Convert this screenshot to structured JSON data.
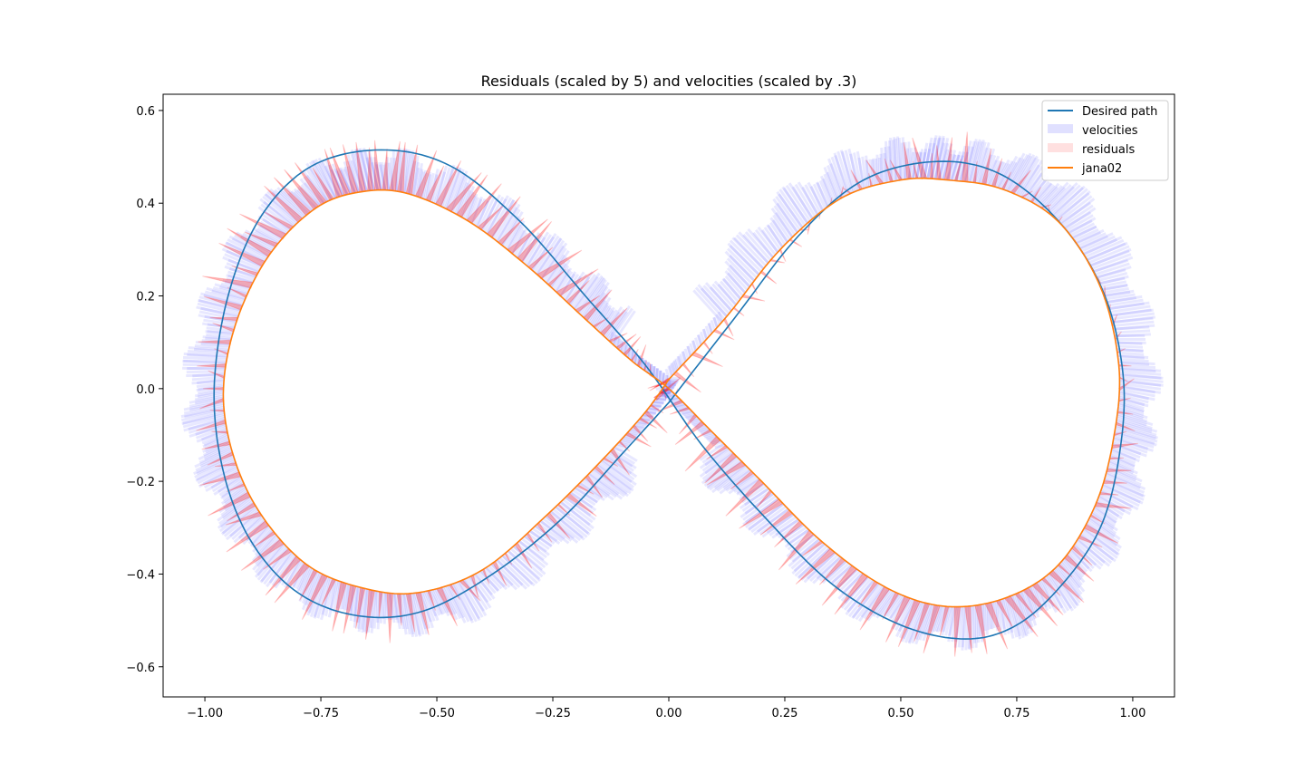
{
  "chart_data": {
    "type": "line",
    "title": "Residuals (scaled by 5) and velocities (scaled by .3)",
    "xlabel": "",
    "ylabel": "",
    "xlim": [
      -1.09,
      1.09
    ],
    "ylim": [
      -0.665,
      0.635
    ],
    "xticks": [
      -1.0,
      -0.75,
      -0.5,
      -0.25,
      0.0,
      0.25,
      0.5,
      0.75,
      1.0
    ],
    "xtick_labels": [
      "−1.00",
      "−0.75",
      "−0.50",
      "−0.25",
      "0.00",
      "0.25",
      "0.50",
      "0.75",
      "1.00"
    ],
    "yticks": [
      -0.6,
      -0.4,
      -0.2,
      0.0,
      0.2,
      0.4,
      0.6
    ],
    "ytick_labels": [
      "−0.6",
      "−0.4",
      "−0.2",
      "0.0",
      "0.2",
      "0.4",
      "0.6"
    ],
    "grid": false,
    "legend_position": "top-right",
    "series": [
      {
        "name": "Desired path",
        "kind": "line",
        "color": "#1f77b4",
        "x": [
          0.0,
          0.14,
          0.28,
          0.42,
          0.58,
          0.72,
          0.85,
          0.94,
          0.98,
          0.97,
          0.93,
          0.85,
          0.75,
          0.64,
          0.5,
          0.35,
          0.2,
          0.07,
          -0.05,
          -0.18,
          -0.32,
          -0.47,
          -0.62,
          -0.77,
          -0.88,
          -0.95,
          -0.98,
          -0.96,
          -0.9,
          -0.8,
          -0.67,
          -0.53,
          -0.38,
          -0.23,
          -0.1,
          0.0
        ],
        "y": [
          -0.03,
          0.15,
          0.33,
          0.45,
          0.49,
          0.46,
          0.35,
          0.2,
          0.02,
          -0.15,
          -0.3,
          -0.42,
          -0.51,
          -0.54,
          -0.51,
          -0.42,
          -0.27,
          -0.12,
          0.05,
          0.2,
          0.36,
          0.48,
          0.515,
          0.48,
          0.37,
          0.2,
          0.0,
          -0.18,
          -0.33,
          -0.44,
          -0.49,
          -0.48,
          -0.4,
          -0.28,
          -0.14,
          -0.03
        ]
      },
      {
        "name": "velocities",
        "kind": "band",
        "color": "#0000ff"
      },
      {
        "name": "residuals",
        "kind": "arrows",
        "color": "#ff0000"
      },
      {
        "name": "jana02",
        "kind": "line",
        "color": "#ff7f0e",
        "x": [
          0.0,
          0.12,
          0.24,
          0.37,
          0.5,
          0.6,
          0.72,
          0.84,
          0.93,
          0.97,
          0.96,
          0.92,
          0.84,
          0.73,
          0.6,
          0.47,
          0.33,
          0.2,
          0.09,
          0.0,
          -0.08,
          -0.18,
          -0.3,
          -0.43,
          -0.56,
          -0.66,
          -0.76,
          -0.86,
          -0.93,
          -0.96,
          -0.94,
          -0.88,
          -0.78,
          -0.66,
          -0.54,
          -0.4,
          -0.26,
          -0.14,
          -0.05,
          0.0
        ],
        "y": [
          0.02,
          0.15,
          0.3,
          0.41,
          0.45,
          0.45,
          0.43,
          0.36,
          0.22,
          0.05,
          -0.1,
          -0.25,
          -0.38,
          -0.45,
          -0.47,
          -0.43,
          -0.33,
          -0.2,
          -0.09,
          0.0,
          0.06,
          0.15,
          0.26,
          0.36,
          0.42,
          0.425,
          0.39,
          0.29,
          0.15,
          0.0,
          -0.14,
          -0.27,
          -0.38,
          -0.43,
          -0.44,
          -0.39,
          -0.27,
          -0.15,
          -0.05,
          0.02
        ]
      }
    ],
    "legend": [
      "Desired path",
      "velocities",
      "residuals",
      "jana02"
    ]
  }
}
